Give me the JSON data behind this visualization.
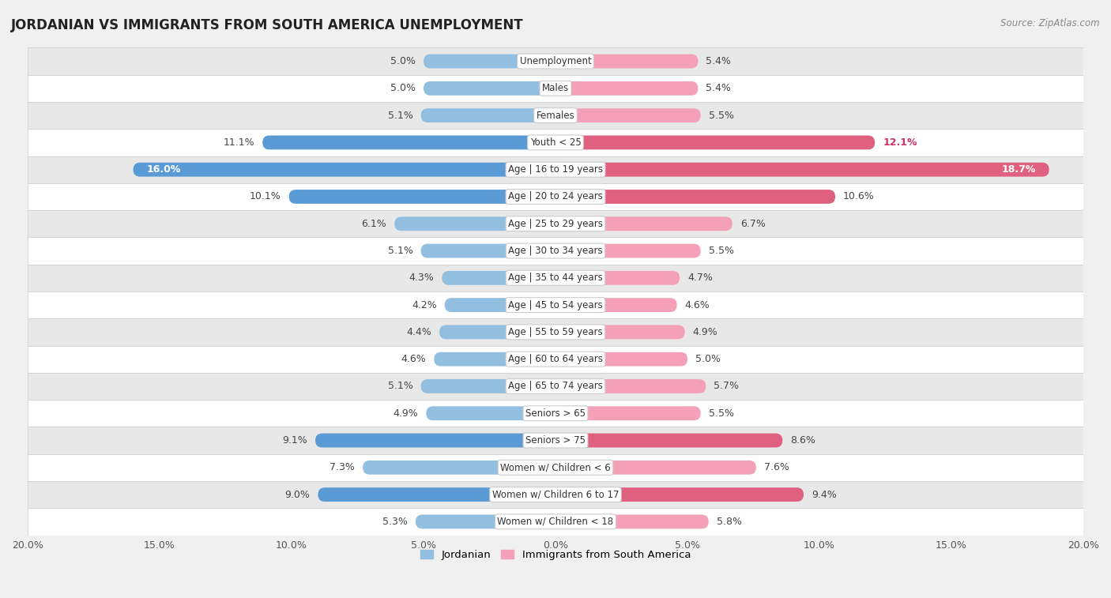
{
  "title": "JORDANIAN VS IMMIGRANTS FROM SOUTH AMERICA UNEMPLOYMENT",
  "source": "Source: ZipAtlas.com",
  "categories": [
    "Unemployment",
    "Males",
    "Females",
    "Youth < 25",
    "Age | 16 to 19 years",
    "Age | 20 to 24 years",
    "Age | 25 to 29 years",
    "Age | 30 to 34 years",
    "Age | 35 to 44 years",
    "Age | 45 to 54 years",
    "Age | 55 to 59 years",
    "Age | 60 to 64 years",
    "Age | 65 to 74 years",
    "Seniors > 65",
    "Seniors > 75",
    "Women w/ Children < 6",
    "Women w/ Children 6 to 17",
    "Women w/ Children < 18"
  ],
  "jordanian": [
    5.0,
    5.0,
    5.1,
    11.1,
    16.0,
    10.1,
    6.1,
    5.1,
    4.3,
    4.2,
    4.4,
    4.6,
    5.1,
    4.9,
    9.1,
    7.3,
    9.0,
    5.3
  ],
  "immigrants": [
    5.4,
    5.4,
    5.5,
    12.1,
    18.7,
    10.6,
    6.7,
    5.5,
    4.7,
    4.6,
    4.9,
    5.0,
    5.7,
    5.5,
    8.6,
    7.6,
    9.4,
    5.8
  ],
  "jordanian_color": "#92bfe0",
  "immigrants_color": "#f4a0b8",
  "jordanian_highlight_color": "#5b9bd5",
  "immigrants_highlight_color": "#e06080",
  "background_color": "#f0f0f0",
  "row_white_color": "#ffffff",
  "row_gray_color": "#e8e8e8",
  "xlim": 20.0,
  "bar_height": 0.52,
  "legend_jordanian": "Jordanian",
  "legend_immigrants": "Immigrants from South America",
  "title_fontsize": 12,
  "label_fontsize": 9,
  "cat_fontsize": 8.5
}
